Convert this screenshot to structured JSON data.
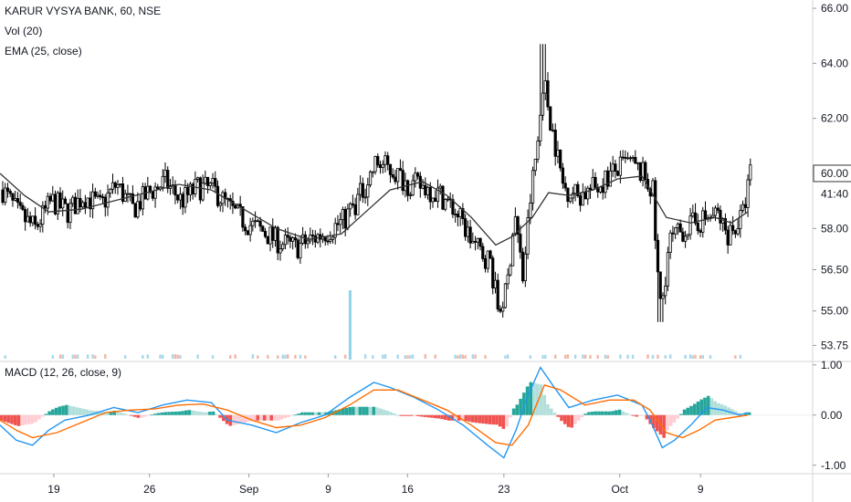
{
  "legend": {
    "symbol": "KARUR VYSYA BANK, 60, NSE",
    "vol": "Vol (20)",
    "ema": "EMA (25, close)",
    "macd": "MACD (12, 26, close, 9)"
  },
  "colors": {
    "candle": "#000000",
    "ema": "#333333",
    "volume_spike": "#8fd4e8",
    "volume_up": "#a8d8ea",
    "volume_down": "#f4b6a6",
    "macd_line": "#2196f3",
    "signal_line": "#ff6d00",
    "hist_pos_strong": "#26a69a",
    "hist_pos_weak": "#b2dfdb",
    "hist_neg_strong": "#ef5350",
    "hist_neg_weak": "#ffcdd2"
  },
  "chart_data": [
    {
      "type": "candlestick",
      "title": "KARUR VYSYA BANK, 60, NSE",
      "price_axis_ticks": [
        "66.00",
        "64.00",
        "62.00",
        "60.00",
        "58.00",
        "56.50",
        "55.00",
        "53.75"
      ],
      "price_axis_values": [
        66.0,
        64.0,
        62.0,
        60.0,
        58.0,
        56.5,
        55.0,
        53.75
      ],
      "current_price_label": "60.00",
      "ema_label": "41:40",
      "ylim": [
        53.2,
        66.3
      ],
      "x_labels": [
        "19",
        "26",
        "Sep",
        "9",
        "16",
        "23",
        "Oct",
        "9"
      ],
      "path_points": [
        [
          0,
          59.4
        ],
        [
          0.02,
          58.5
        ],
        [
          0.04,
          58.0
        ],
        [
          0.06,
          59.0
        ],
        [
          0.08,
          58.6
        ],
        [
          0.1,
          59.2
        ],
        [
          0.12,
          58.8
        ],
        [
          0.14,
          59.6
        ],
        [
          0.16,
          58.7
        ],
        [
          0.18,
          59.3
        ],
        [
          0.2,
          59.7
        ],
        [
          0.22,
          59.0
        ],
        [
          0.24,
          59.5
        ],
        [
          0.26,
          59.4
        ],
        [
          0.28,
          58.7
        ],
        [
          0.3,
          58.2
        ],
        [
          0.32,
          57.9
        ],
        [
          0.34,
          57.5
        ],
        [
          0.36,
          57.3
        ],
        [
          0.38,
          57.6
        ],
        [
          0.4,
          57.9
        ],
        [
          0.42,
          58.3
        ],
        [
          0.44,
          59.2
        ],
        [
          0.46,
          60.4
        ],
        [
          0.48,
          60.1
        ],
        [
          0.5,
          59.6
        ],
        [
          0.52,
          59.5
        ],
        [
          0.54,
          59.2
        ],
        [
          0.56,
          58.5
        ],
        [
          0.58,
          57.4
        ],
        [
          0.6,
          56.8
        ],
        [
          0.61,
          55.0
        ],
        [
          0.62,
          55.7
        ],
        [
          0.63,
          58.6
        ],
        [
          0.64,
          56.2
        ],
        [
          0.65,
          59.3
        ],
        [
          0.66,
          61.5
        ],
        [
          0.665,
          63.5
        ],
        [
          0.675,
          61.8
        ],
        [
          0.69,
          59.5
        ],
        [
          0.71,
          59.2
        ],
        [
          0.73,
          59.5
        ],
        [
          0.75,
          60.0
        ],
        [
          0.77,
          60.4
        ],
        [
          0.79,
          59.9
        ],
        [
          0.8,
          59.3
        ],
        [
          0.805,
          56.6
        ],
        [
          0.81,
          55.0
        ],
        [
          0.82,
          57.5
        ],
        [
          0.84,
          58.0
        ],
        [
          0.86,
          58.3
        ],
        [
          0.88,
          58.5
        ],
        [
          0.89,
          57.8
        ],
        [
          0.9,
          58.0
        ],
        [
          0.91,
          58.4
        ],
        [
          0.92,
          60.0
        ]
      ],
      "ema_points": [
        [
          0,
          60.0
        ],
        [
          0.03,
          59.2
        ],
        [
          0.06,
          58.6
        ],
        [
          0.1,
          58.7
        ],
        [
          0.14,
          59.0
        ],
        [
          0.18,
          59.3
        ],
        [
          0.22,
          59.6
        ],
        [
          0.26,
          59.4
        ],
        [
          0.3,
          58.7
        ],
        [
          0.34,
          58.0
        ],
        [
          0.38,
          57.6
        ],
        [
          0.42,
          57.8
        ],
        [
          0.45,
          58.6
        ],
        [
          0.48,
          59.4
        ],
        [
          0.52,
          59.7
        ],
        [
          0.55,
          59.2
        ],
        [
          0.58,
          58.4
        ],
        [
          0.61,
          57.4
        ],
        [
          0.63,
          57.7
        ],
        [
          0.655,
          58.4
        ],
        [
          0.675,
          59.3
        ],
        [
          0.7,
          59.2
        ],
        [
          0.73,
          59.4
        ],
        [
          0.76,
          59.8
        ],
        [
          0.79,
          59.9
        ],
        [
          0.8,
          59.4
        ],
        [
          0.82,
          58.4
        ],
        [
          0.85,
          58.2
        ],
        [
          0.88,
          58.4
        ],
        [
          0.9,
          58.2
        ],
        [
          0.92,
          58.6
        ]
      ]
    },
    {
      "type": "line",
      "title": "MACD (12, 26, close, 9)",
      "axis_ticks": [
        "1.00",
        "0.00",
        "-1.00"
      ],
      "axis_values": [
        1.0,
        0.0,
        -1.0
      ],
      "ylim": [
        -1.15,
        1.05
      ],
      "series": [
        {
          "values": [
            [
              0,
              -0.2
            ],
            [
              0.02,
              -0.5
            ],
            [
              0.04,
              -0.6
            ],
            [
              0.06,
              -0.3
            ],
            [
              0.08,
              -0.1
            ],
            [
              0.11,
              0.0
            ],
            [
              0.14,
              0.15
            ],
            [
              0.17,
              0.05
            ],
            [
              0.2,
              0.2
            ],
            [
              0.23,
              0.3
            ],
            [
              0.26,
              0.25
            ],
            [
              0.28,
              -0.1
            ],
            [
              0.31,
              -0.2
            ],
            [
              0.34,
              -0.35
            ],
            [
              0.37,
              -0.15
            ],
            [
              0.4,
              0.0
            ],
            [
              0.43,
              0.35
            ],
            [
              0.46,
              0.65
            ],
            [
              0.48,
              0.55
            ],
            [
              0.51,
              0.35
            ],
            [
              0.54,
              0.1
            ],
            [
              0.57,
              -0.2
            ],
            [
              0.6,
              -0.6
            ],
            [
              0.62,
              -0.85
            ],
            [
              0.635,
              -0.3
            ],
            [
              0.65,
              0.4
            ],
            [
              0.665,
              0.95
            ],
            [
              0.68,
              0.6
            ],
            [
              0.7,
              0.15
            ],
            [
              0.73,
              0.3
            ],
            [
              0.76,
              0.4
            ],
            [
              0.79,
              0.2
            ],
            [
              0.8,
              -0.1
            ],
            [
              0.815,
              -0.65
            ],
            [
              0.83,
              -0.5
            ],
            [
              0.85,
              -0.2
            ],
            [
              0.87,
              0.15
            ],
            [
              0.89,
              0.1
            ],
            [
              0.91,
              0.0
            ],
            [
              0.92,
              0.05
            ]
          ]
        },
        {
          "values": [
            [
              0,
              -0.1
            ],
            [
              0.02,
              -0.3
            ],
            [
              0.04,
              -0.45
            ],
            [
              0.07,
              -0.35
            ],
            [
              0.1,
              -0.15
            ],
            [
              0.13,
              0.05
            ],
            [
              0.16,
              0.1
            ],
            [
              0.19,
              0.12
            ],
            [
              0.22,
              0.2
            ],
            [
              0.25,
              0.22
            ],
            [
              0.28,
              0.1
            ],
            [
              0.31,
              -0.1
            ],
            [
              0.34,
              -0.25
            ],
            [
              0.37,
              -0.2
            ],
            [
              0.4,
              -0.05
            ],
            [
              0.43,
              0.2
            ],
            [
              0.46,
              0.5
            ],
            [
              0.49,
              0.5
            ],
            [
              0.52,
              0.3
            ],
            [
              0.55,
              0.1
            ],
            [
              0.58,
              -0.2
            ],
            [
              0.61,
              -0.55
            ],
            [
              0.63,
              -0.6
            ],
            [
              0.65,
              -0.2
            ],
            [
              0.67,
              0.6
            ],
            [
              0.69,
              0.5
            ],
            [
              0.72,
              0.2
            ],
            [
              0.75,
              0.3
            ],
            [
              0.78,
              0.3
            ],
            [
              0.8,
              0.1
            ],
            [
              0.82,
              -0.35
            ],
            [
              0.84,
              -0.45
            ],
            [
              0.86,
              -0.3
            ],
            [
              0.88,
              -0.1
            ],
            [
              0.9,
              -0.05
            ],
            [
              0.92,
              0.0
            ]
          ]
        }
      ],
      "x_labels": [
        "19",
        "26",
        "Sep",
        "9",
        "16",
        "23",
        "Oct",
        "9"
      ]
    }
  ]
}
